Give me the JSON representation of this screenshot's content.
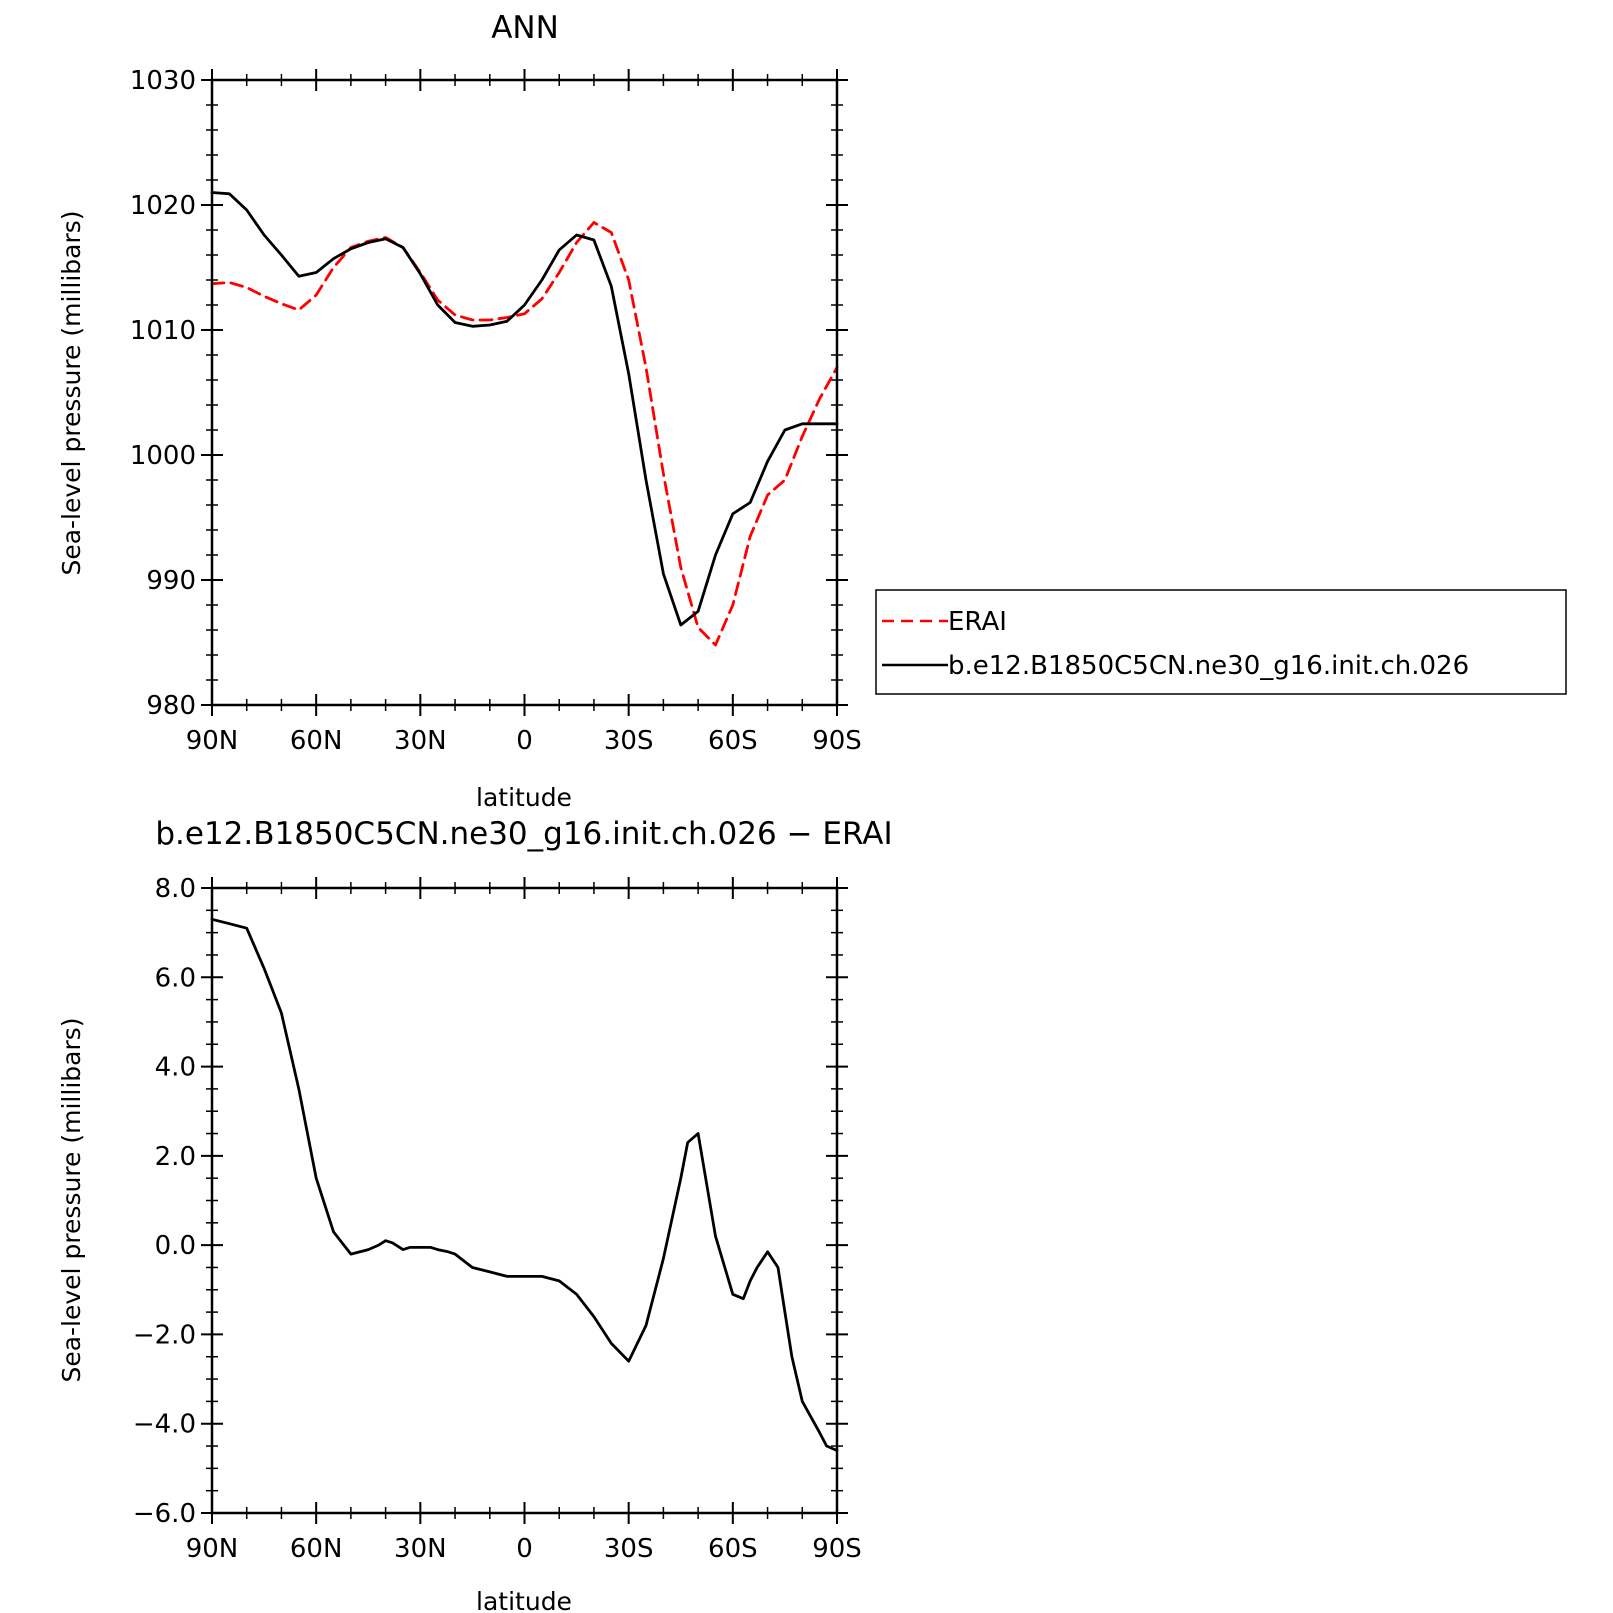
{
  "chart_data": [
    {
      "type": "line",
      "title": "ANN",
      "xlabel": "latitude",
      "ylabel": "Sea-level pressure (millibars)",
      "xlim": [
        90,
        -90
      ],
      "ylim": [
        980,
        1030
      ],
      "x_ticks": [
        90,
        60,
        30,
        0,
        -30,
        -60,
        -90
      ],
      "x_tick_labels": [
        "90N",
        "60N",
        "30N",
        "0",
        "30S",
        "60S",
        "90S"
      ],
      "y_ticks": [
        980,
        990,
        1000,
        1010,
        1020,
        1030
      ],
      "y_tick_labels": [
        "980",
        "990",
        "1000",
        "1010",
        "1020",
        "1030"
      ],
      "legend": "outside-right",
      "series": [
        {
          "name": "ERAI",
          "color": "#ff0000",
          "dash": "dashed",
          "x": [
            90,
            85,
            80,
            75,
            70,
            65,
            60,
            55,
            50,
            45,
            40,
            35,
            30,
            25,
            20,
            15,
            10,
            5,
            0,
            -5,
            -10,
            -15,
            -20,
            -25,
            -30,
            -35,
            -40,
            -45,
            -50,
            -55,
            -60,
            -65,
            -70,
            -75,
            -80,
            -85,
            -90
          ],
          "values": [
            1013.7,
            1013.8,
            1013.4,
            1012.7,
            1012.1,
            1011.6,
            1012.8,
            1015.0,
            1016.6,
            1017.1,
            1017.4,
            1016.6,
            1014.6,
            1012.4,
            1011.2,
            1010.8,
            1010.8,
            1011.0,
            1011.3,
            1012.5,
            1014.6,
            1017.0,
            1018.6,
            1017.8,
            1014.0,
            1007.0,
            998.5,
            991.0,
            986.2,
            984.8,
            988.0,
            993.5,
            996.8,
            998.0,
            1001.5,
            1004.5,
            1007.0
          ]
        },
        {
          "name": "b.e12.B1850C5CN.ne30_g16.init.ch.026",
          "color": "#000000",
          "dash": "solid",
          "x": [
            90,
            85,
            80,
            75,
            70,
            65,
            60,
            55,
            50,
            45,
            40,
            35,
            30,
            25,
            20,
            15,
            10,
            5,
            0,
            -5,
            -10,
            -15,
            -20,
            -25,
            -30,
            -35,
            -40,
            -45,
            -50,
            -55,
            -60,
            -65,
            -70,
            -75,
            -80,
            -85,
            -90
          ],
          "values": [
            1021.0,
            1020.9,
            1019.6,
            1017.6,
            1016.0,
            1014.3,
            1014.6,
            1015.7,
            1016.5,
            1017.0,
            1017.3,
            1016.6,
            1014.5,
            1012.0,
            1010.6,
            1010.3,
            1010.4,
            1010.7,
            1012.0,
            1014.0,
            1016.4,
            1017.6,
            1017.2,
            1013.5,
            1006.5,
            998.0,
            990.5,
            986.4,
            987.5,
            992.0,
            995.3,
            996.2,
            999.5,
            1002.0,
            1002.5,
            1002.5,
            1002.5
          ]
        }
      ]
    },
    {
      "type": "line",
      "title": "b.e12.B1850C5CN.ne30_g16.init.ch.026 − ERAI",
      "xlabel": "latitude",
      "ylabel": "Sea-level pressure (millibars)",
      "xlim": [
        90,
        -90
      ],
      "ylim": [
        -6.0,
        8.0
      ],
      "x_ticks": [
        90,
        60,
        30,
        0,
        -30,
        -60,
        -90
      ],
      "x_tick_labels": [
        "90N",
        "60N",
        "30N",
        "0",
        "30S",
        "60S",
        "90S"
      ],
      "y_ticks": [
        -6.0,
        -4.0,
        -2.0,
        0.0,
        2.0,
        4.0,
        6.0,
        8.0
      ],
      "y_tick_labels": [
        "−6.0",
        "−4.0",
        "−2.0",
        "0.0",
        "2.0",
        "4.0",
        "6.0",
        "8.0"
      ],
      "series": [
        {
          "color": "#000000",
          "dash": "solid",
          "x": [
            90,
            85,
            80,
            75,
            70,
            65,
            60,
            55,
            50,
            45,
            42,
            40,
            38,
            35,
            33,
            30,
            27,
            25,
            22,
            20,
            15,
            10,
            5,
            0,
            -5,
            -10,
            -15,
            -20,
            -25,
            -30,
            -35,
            -40,
            -45,
            -47,
            -50,
            -55,
            -60,
            -63,
            -65,
            -67,
            -70,
            -73,
            -75,
            -77,
            -80,
            -85,
            -87,
            -90
          ],
          "values": [
            7.3,
            7.2,
            7.1,
            6.2,
            5.2,
            3.5,
            1.5,
            0.3,
            -0.2,
            -0.1,
            0.0,
            0.1,
            0.05,
            -0.1,
            -0.05,
            -0.05,
            -0.05,
            -0.1,
            -0.15,
            -0.2,
            -0.5,
            -0.6,
            -0.7,
            -0.7,
            -0.7,
            -0.8,
            -1.1,
            -1.6,
            -2.2,
            -2.6,
            -1.8,
            -0.3,
            1.5,
            2.3,
            2.5,
            0.2,
            -1.1,
            -1.2,
            -0.8,
            -0.5,
            -0.15,
            -0.5,
            -1.5,
            -2.5,
            -3.5,
            -4.2,
            -4.5,
            -4.6
          ]
        }
      ]
    }
  ]
}
